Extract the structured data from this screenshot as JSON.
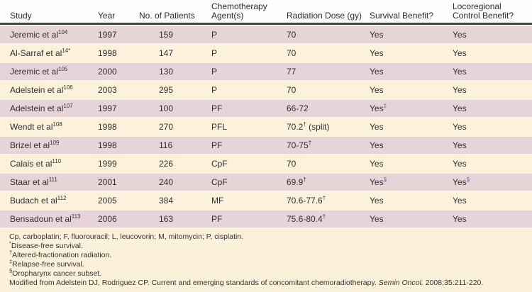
{
  "colors": {
    "pink_row": "#e7d4d8",
    "cream_row": "#fcf2dc",
    "page_background": "#fbf1db",
    "header_rule": "#474747",
    "footnote_mark_accent": "#55519c"
  },
  "header": {
    "study": "Study",
    "year": "Year",
    "patients": "No. of Patients",
    "chemo_line1": "Chemotherapy",
    "chemo_line2": "Agent(s)",
    "dose": "Radiation Dose (gy)",
    "survival": "Survival Benefit?",
    "loco_line1": "Locoregional",
    "loco_line2": "Control Benefit?"
  },
  "rows": [
    {
      "study": "Jeremic et al",
      "ref": "104",
      "year": "1997",
      "patients": "159",
      "chemo": "P",
      "dose": "70",
      "dose_sup": "",
      "dose_suffix": "",
      "survival": "Yes",
      "survival_sup": "",
      "loco": "Yes",
      "loco_sup": ""
    },
    {
      "study": "Al-Sarraf et al",
      "ref": "14*",
      "year": "1998",
      "patients": "147",
      "chemo": "P",
      "dose": "70",
      "dose_sup": "",
      "dose_suffix": "",
      "survival": "Yes",
      "survival_sup": "",
      "loco": "Yes",
      "loco_sup": ""
    },
    {
      "study": "Jeremic et al",
      "ref": "105",
      "year": "2000",
      "patients": "130",
      "chemo": "P",
      "dose": "77",
      "dose_sup": "",
      "dose_suffix": "",
      "survival": "Yes",
      "survival_sup": "",
      "loco": "Yes",
      "loco_sup": ""
    },
    {
      "study": "Adelstein et al",
      "ref": "106",
      "year": "2003",
      "patients": "295",
      "chemo": "P",
      "dose": "70",
      "dose_sup": "",
      "dose_suffix": "",
      "survival": "Yes",
      "survival_sup": "",
      "loco": "Yes",
      "loco_sup": ""
    },
    {
      "study": "Adelstein et al",
      "ref": "107",
      "year": "1997",
      "patients": "100",
      "chemo": "PF",
      "dose": "66-72",
      "dose_sup": "",
      "dose_suffix": "",
      "survival": "Yes",
      "survival_sup": "‡",
      "loco": "Yes",
      "loco_sup": ""
    },
    {
      "study": "Wendt et al",
      "ref": "108",
      "year": "1998",
      "patients": "270",
      "chemo": "PFL",
      "dose": "70.2",
      "dose_sup": "†",
      "dose_suffix": " (split)",
      "survival": "Yes",
      "survival_sup": "",
      "loco": "Yes",
      "loco_sup": ""
    },
    {
      "study": "Brizel et al",
      "ref": "109",
      "year": "1998",
      "patients": "116",
      "chemo": "PF",
      "dose": "70-75",
      "dose_sup": "†",
      "dose_suffix": "",
      "survival": "Yes",
      "survival_sup": "",
      "loco": "Yes",
      "loco_sup": ""
    },
    {
      "study": "Calais et al",
      "ref": "110",
      "year": "1999",
      "patients": "226",
      "chemo": "CpF",
      "dose": "70",
      "dose_sup": "",
      "dose_suffix": "",
      "survival": "Yes",
      "survival_sup": "",
      "loco": "Yes",
      "loco_sup": ""
    },
    {
      "study": "Staar et al",
      "ref": "111",
      "year": "2001",
      "patients": "240",
      "chemo": "CpF",
      "dose": "69.9",
      "dose_sup": "†",
      "dose_suffix": "",
      "survival": "Yes",
      "survival_sup": "§",
      "loco": "Yes",
      "loco_sup": "§"
    },
    {
      "study": "Budach et al",
      "ref": "112",
      "year": "2005",
      "patients": "384",
      "chemo": "MF",
      "dose": "70.6-77.6",
      "dose_sup": "†",
      "dose_suffix": "",
      "survival": "Yes",
      "survival_sup": "",
      "loco": "Yes",
      "loco_sup": ""
    },
    {
      "study": "Bensadoun et al",
      "ref": "113",
      "year": "2006",
      "patients": "163",
      "chemo": "PF",
      "dose": "75.6-80.4",
      "dose_sup": "†",
      "dose_suffix": "",
      "survival": "Yes",
      "survival_sup": "",
      "loco": "Yes",
      "loco_sup": ""
    }
  ],
  "footnotes": {
    "abbreviations": "Cp, carboplatin; F, fluorouracil; L, leucovorin; M, mitomycin; P, cisplatin.",
    "notes": [
      {
        "sym": "*",
        "text": "Disease-free survival."
      },
      {
        "sym": "†",
        "text": "Altered-fractionation radiation."
      },
      {
        "sym": "‡",
        "text": "Relapse-free survival."
      },
      {
        "sym": "§",
        "text": "Oropharynx cancer subset."
      }
    ],
    "citation": {
      "prefix": "Modified from Adelstein DJ, Rodriguez CP. Current and emerging standards of concomitant chemoradiotherapy. ",
      "italic": "Semin Oncol.",
      "suffix": " 2008;35:211-220."
    }
  }
}
